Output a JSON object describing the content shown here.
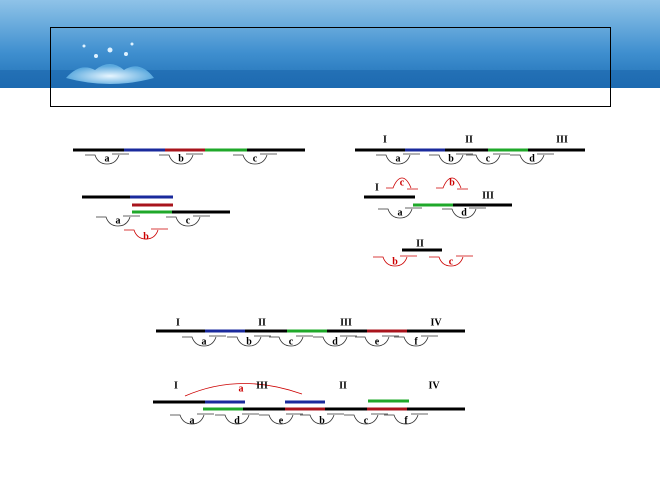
{
  "diagrams": [
    {
      "labels": [
        "a",
        "b",
        "c"
      ]
    },
    {
      "labels": [
        "a",
        "c",
        "b"
      ]
    },
    {
      "labels": [
        "I",
        "II",
        "III",
        "a",
        "b",
        "c",
        "d"
      ]
    },
    {
      "labels": [
        "c",
        "b",
        "I",
        "III",
        "a",
        "d"
      ]
    },
    {
      "labels": [
        "II",
        "b",
        "c"
      ]
    },
    {
      "labels": [
        "I",
        "II",
        "III",
        "IV",
        "a",
        "b",
        "c",
        "d",
        "e",
        "f"
      ]
    },
    {
      "labels": [
        "I",
        "a",
        "III",
        "II",
        "IV",
        "a",
        "d",
        "e",
        "b",
        "c",
        "f"
      ]
    }
  ]
}
